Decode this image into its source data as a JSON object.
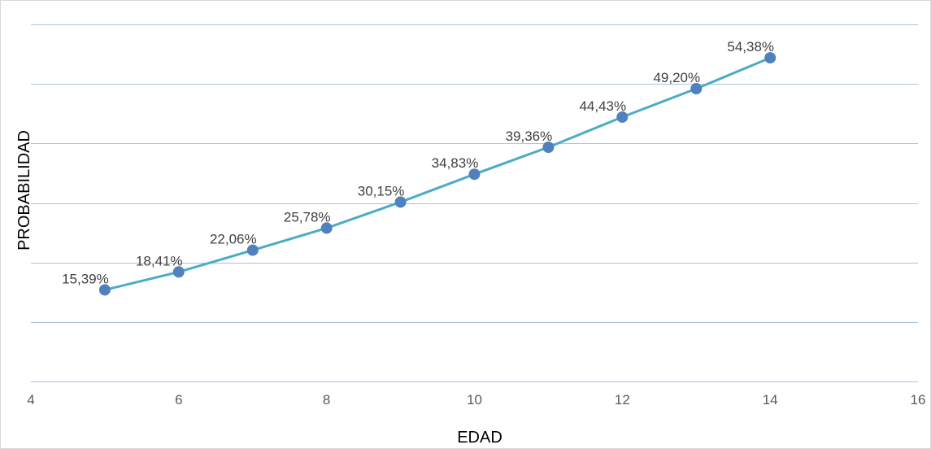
{
  "chart_data": {
    "type": "scatter",
    "title": "",
    "xlabel": "EDAD",
    "ylabel": "PROBABILIDAD",
    "xlim": [
      4,
      16
    ],
    "xticks": [
      "4",
      "6",
      "8",
      "10",
      "12",
      "14",
      "16"
    ],
    "ylim": [
      0,
      0.6
    ],
    "y_gridlines": [
      0.1,
      0.2,
      0.3,
      0.4,
      0.5,
      0.6
    ],
    "y_tick_labels_shown": false,
    "grid": "horizontal",
    "legend": "none",
    "line_color": "#4bacc6",
    "marker_color": "#4f81bd",
    "series": [
      {
        "x": [
          5,
          6,
          7,
          8,
          9,
          10,
          11,
          12,
          13,
          14
        ],
        "values": [
          0.1539,
          0.1841,
          0.2206,
          0.2578,
          0.3015,
          0.3483,
          0.3936,
          0.4443,
          0.492,
          0.5438
        ],
        "labels": [
          "15,39%",
          "18,41%",
          "22,06%",
          "25,78%",
          "30,15%",
          "34,83%",
          "39,36%",
          "44,43%",
          "49,20%",
          "54,38%"
        ]
      }
    ]
  }
}
